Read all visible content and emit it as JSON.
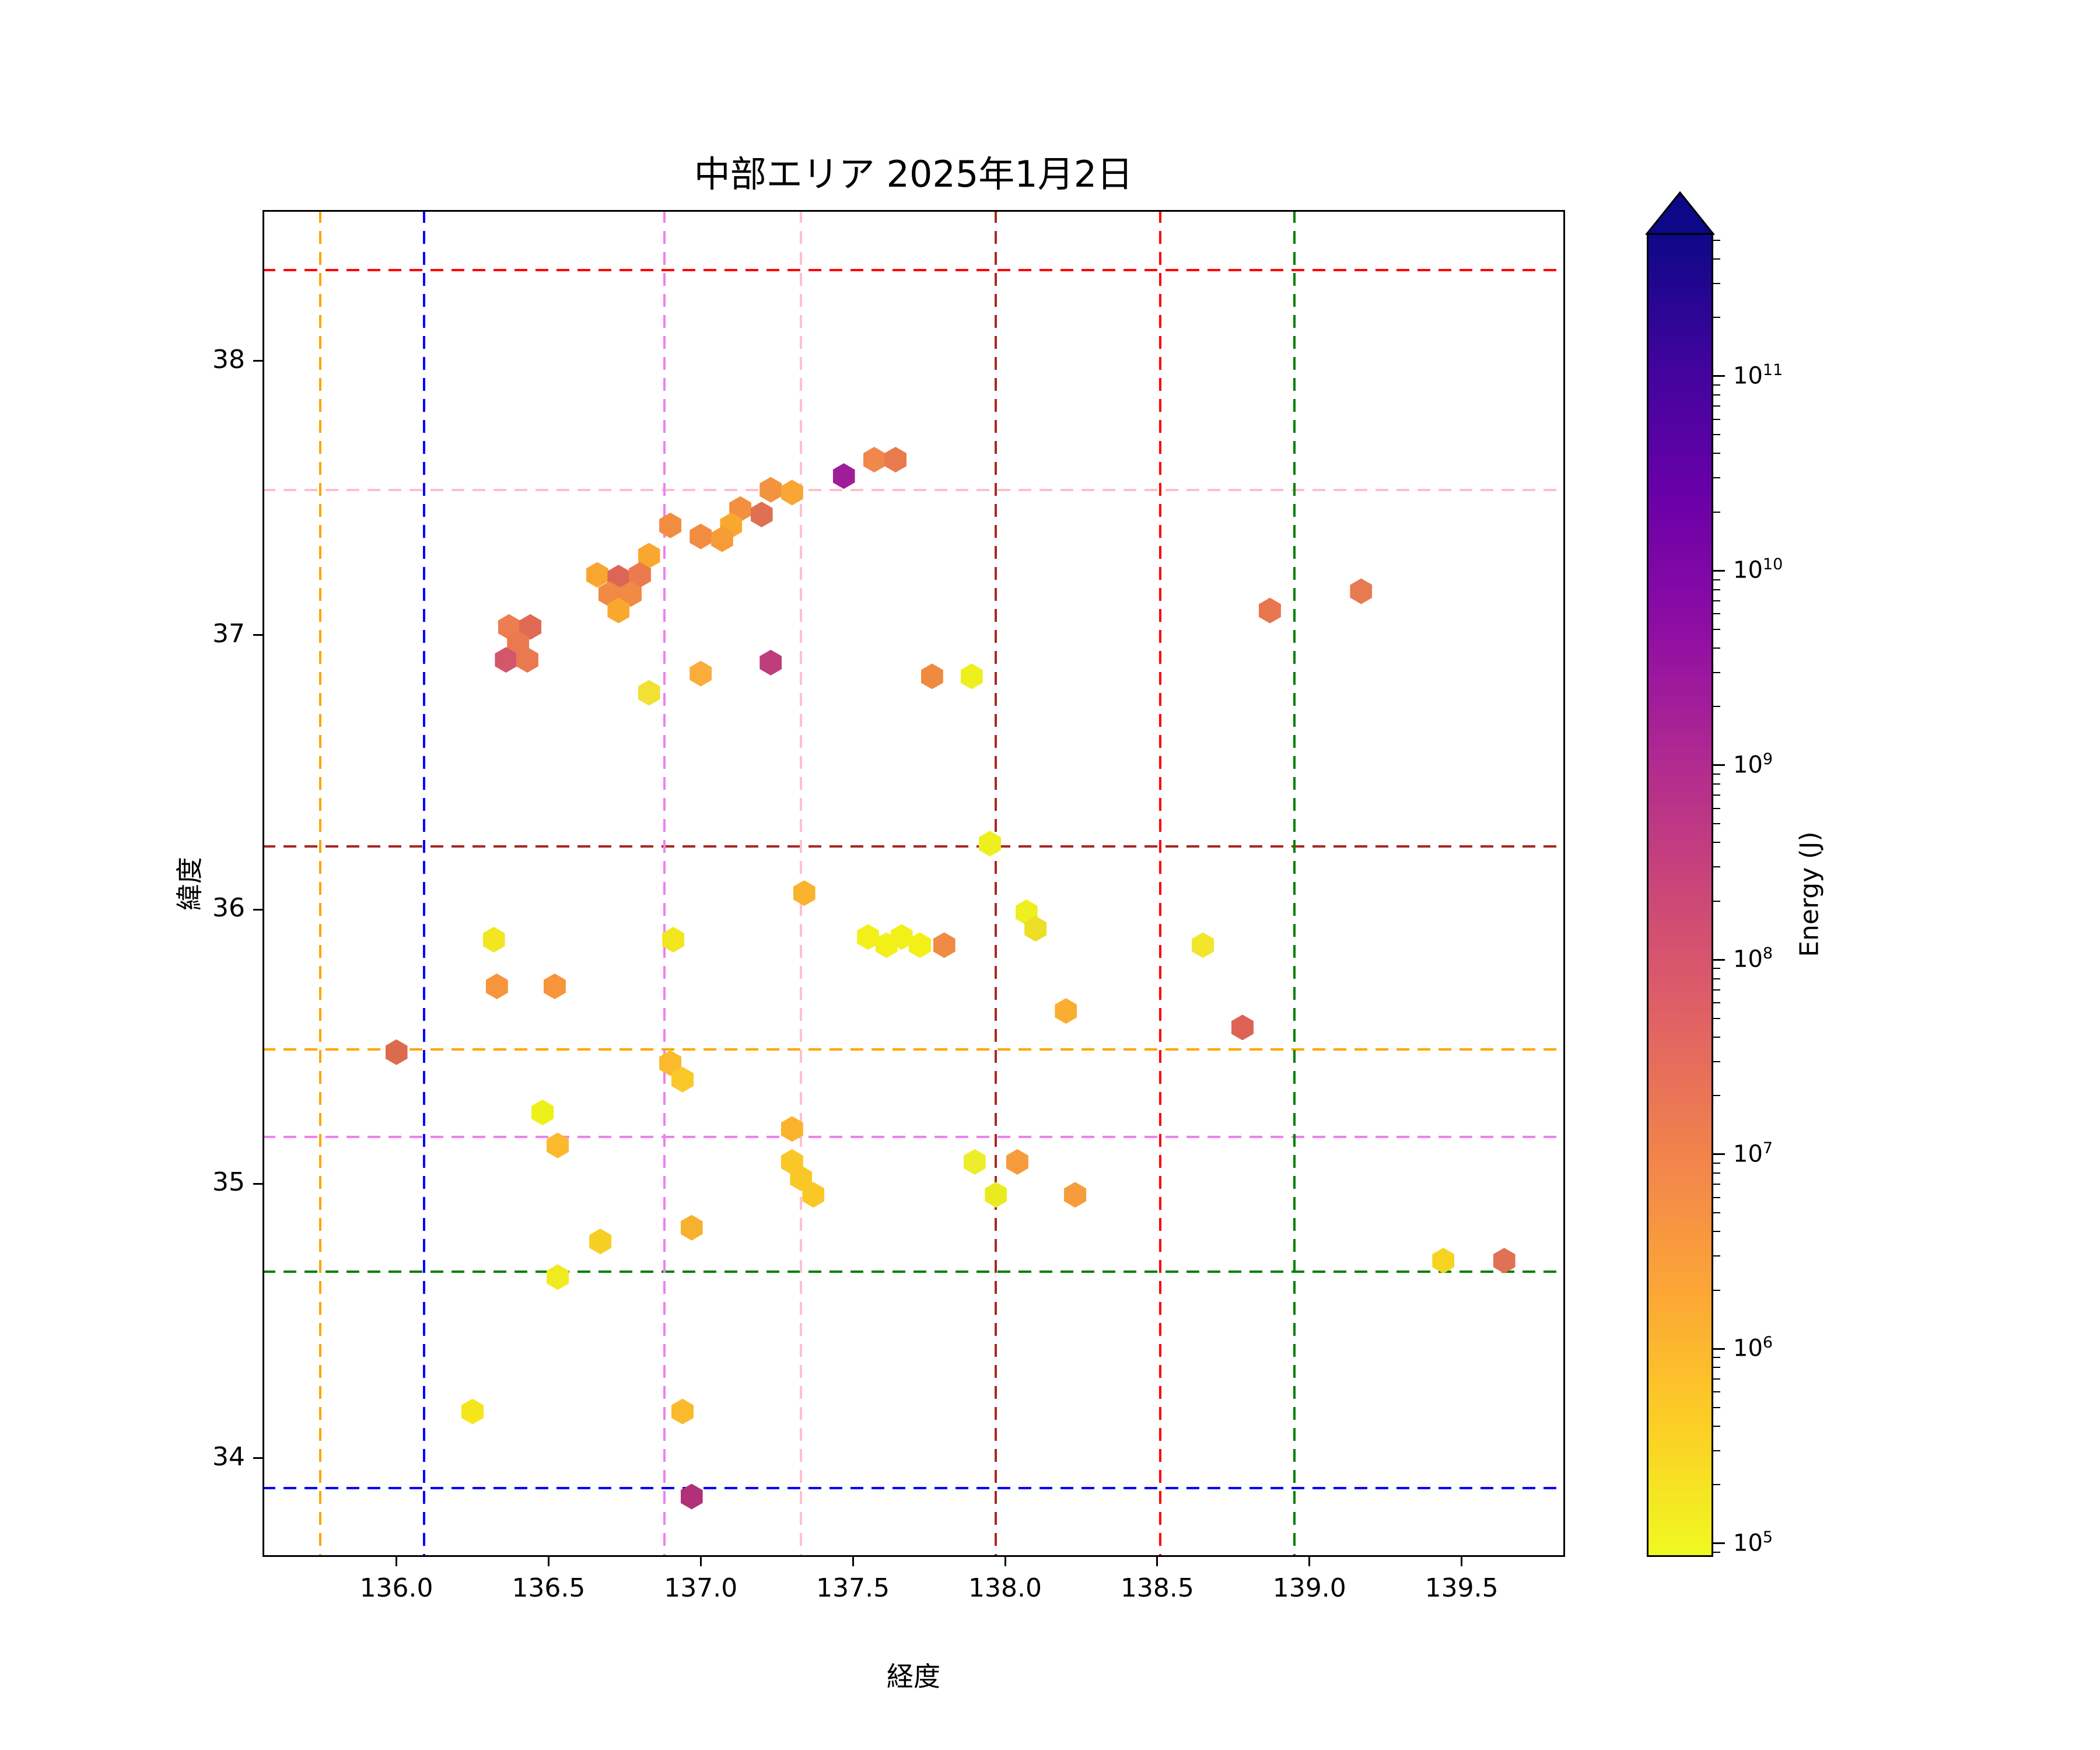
{
  "title": "中部エリア 2025年1月2日",
  "axes": {
    "xlabel": "経度",
    "ylabel": "緯度",
    "xlim": [
      135.56,
      139.84
    ],
    "ylim": [
      33.64,
      38.55
    ],
    "x_ticks": [
      "136.0",
      "136.5",
      "137.0",
      "137.5",
      "138.0",
      "138.5",
      "139.0",
      "139.5"
    ],
    "y_ticks": [
      "34",
      "35",
      "36",
      "37",
      "38"
    ]
  },
  "colorbar": {
    "label": "Energy (J)",
    "scale": "log",
    "colormap": "plasma_r",
    "extend": "max",
    "tick_exponents": [
      5,
      6,
      7,
      8,
      9,
      10,
      11
    ],
    "log_min": 4.93,
    "log_max": 11.74,
    "arrow_color": "#0d0887",
    "gradient_stops": [
      "#0d0887",
      "#41049d",
      "#6a00a8",
      "#8f0da4",
      "#b12a90",
      "#cc4778",
      "#e16462",
      "#f2844b",
      "#fca636",
      "#fcce25",
      "#f0f921"
    ]
  },
  "chart_data": {
    "type": "scatter",
    "marker": "hexagon",
    "title": "中部エリア 2025年1月2日",
    "xlabel": "経度",
    "ylabel": "緯度",
    "xlim": [
      135.56,
      139.84
    ],
    "ylim": [
      33.64,
      38.55
    ],
    "grid": false,
    "colorbar_label": "Energy (J)",
    "reference_lines": {
      "horizontal": [
        {
          "color": "#FF0000",
          "name": "red",
          "lat": 38.33
        },
        {
          "color": "#FFC0CB",
          "name": "pink",
          "lat": 37.53
        },
        {
          "color": "#A82822",
          "name": "darkred",
          "lat": 36.23
        },
        {
          "color": "#FFA500",
          "name": "orange",
          "lat": 35.49
        },
        {
          "color": "#EE82EE",
          "name": "violet",
          "lat": 35.17
        },
        {
          "color": "#008000",
          "name": "green",
          "lat": 34.68
        },
        {
          "color": "#0000FF",
          "name": "blue",
          "lat": 33.89
        }
      ],
      "vertical": [
        {
          "color": "#FFA500",
          "name": "orange",
          "lon": 135.75
        },
        {
          "color": "#0000FF",
          "name": "blue",
          "lon": 136.09
        },
        {
          "color": "#EE82EE",
          "name": "violet",
          "lon": 136.88
        },
        {
          "color": "#FFC0CB",
          "name": "pink",
          "lon": 137.33
        },
        {
          "color": "#A82822",
          "name": "darkred",
          "lon": 137.97
        },
        {
          "color": "#FF0000",
          "name": "red",
          "lon": 138.51
        },
        {
          "color": "#008000",
          "name": "green",
          "lon": 138.95
        }
      ]
    },
    "points": [
      {
        "lon": 137.57,
        "lat": 37.64,
        "color": "#F0874B",
        "energy_j_est": 6000000.0
      },
      {
        "lon": 137.64,
        "lat": 37.64,
        "color": "#E97A4E",
        "energy_j_est": 15000000.0
      },
      {
        "lon": 137.47,
        "lat": 37.58,
        "color": "#A01D9A",
        "energy_j_est": 4000000000.0
      },
      {
        "lon": 137.23,
        "lat": 37.53,
        "color": "#F4933F",
        "energy_j_est": 3500000.0
      },
      {
        "lon": 137.3,
        "lat": 37.52,
        "color": "#F9A634",
        "energy_j_est": 1500000.0
      },
      {
        "lon": 137.13,
        "lat": 37.46,
        "color": "#F2903F",
        "energy_j_est": 5000000.0
      },
      {
        "lon": 137.2,
        "lat": 37.44,
        "color": "#DF7052",
        "energy_j_est": 25000000.0
      },
      {
        "lon": 137.1,
        "lat": 37.4,
        "color": "#F9A82F",
        "energy_j_est": 1300000.0
      },
      {
        "lon": 136.9,
        "lat": 37.4,
        "color": "#F28C41",
        "energy_j_est": 5000000.0
      },
      {
        "lon": 137.0,
        "lat": 37.36,
        "color": "#F28C41",
        "energy_j_est": 5000000.0
      },
      {
        "lon": 137.07,
        "lat": 37.35,
        "color": "#F59B37",
        "energy_j_est": 2200000.0
      },
      {
        "lon": 136.83,
        "lat": 37.29,
        "color": "#F9A82F",
        "energy_j_est": 1300000.0
      },
      {
        "lon": 136.66,
        "lat": 37.22,
        "color": "#F9A631",
        "energy_j_est": 1400000.0
      },
      {
        "lon": 136.73,
        "lat": 37.21,
        "color": "#DC6656",
        "energy_j_est": 40000000.0
      },
      {
        "lon": 136.8,
        "lat": 37.22,
        "color": "#EB7A4D",
        "energy_j_est": 14000000.0
      },
      {
        "lon": 136.7,
        "lat": 37.15,
        "color": "#F18A42",
        "energy_j_est": 5500000.0
      },
      {
        "lon": 136.77,
        "lat": 37.15,
        "color": "#F18A42",
        "energy_j_est": 5500000.0
      },
      {
        "lon": 136.73,
        "lat": 37.09,
        "color": "#F9A82F",
        "energy_j_est": 1300000.0
      },
      {
        "lon": 136.37,
        "lat": 37.03,
        "color": "#EE7D4F",
        "energy_j_est": 12000000.0
      },
      {
        "lon": 136.44,
        "lat": 37.03,
        "color": "#E16A55",
        "energy_j_est": 30000000.0
      },
      {
        "lon": 136.4,
        "lat": 36.97,
        "color": "#EB7950",
        "energy_j_est": 14000000.0
      },
      {
        "lon": 136.36,
        "lat": 36.91,
        "color": "#D4566B",
        "energy_j_est": 120000000.0
      },
      {
        "lon": 136.43,
        "lat": 36.91,
        "color": "#EB7950",
        "energy_j_est": 14000000.0
      },
      {
        "lon": 137.23,
        "lat": 36.9,
        "color": "#BE3D7C",
        "energy_j_est": 500000000.0
      },
      {
        "lon": 137.0,
        "lat": 36.86,
        "color": "#FBAC3B",
        "energy_j_est": 1100000.0
      },
      {
        "lon": 136.83,
        "lat": 36.79,
        "color": "#F2E032",
        "energy_j_est": 200000.0
      },
      {
        "lon": 137.76,
        "lat": 36.85,
        "color": "#F08A3E",
        "energy_j_est": 5000000.0
      },
      {
        "lon": 137.89,
        "lat": 36.85,
        "color": "#EEF01E",
        "energy_j_est": 160000.0
      },
      {
        "lon": 138.87,
        "lat": 37.09,
        "color": "#E8764F",
        "energy_j_est": 16000000.0
      },
      {
        "lon": 139.17,
        "lat": 37.16,
        "color": "#E87A50",
        "energy_j_est": 15000000.0
      },
      {
        "lon": 137.95,
        "lat": 36.24,
        "color": "#EDF01E",
        "energy_j_est": 170000.0
      },
      {
        "lon": 137.34,
        "lat": 36.06,
        "color": "#F9B32C",
        "energy_j_est": 900000.0
      },
      {
        "lon": 136.32,
        "lat": 35.89,
        "color": "#F1E620",
        "energy_j_est": 150000.0
      },
      {
        "lon": 136.91,
        "lat": 35.89,
        "color": "#F1E620",
        "energy_j_est": 150000.0
      },
      {
        "lon": 138.07,
        "lat": 35.99,
        "color": "#EDF01E",
        "energy_j_est": 170000.0
      },
      {
        "lon": 138.1,
        "lat": 35.93,
        "color": "#EDDE26",
        "energy_j_est": 300000.0
      },
      {
        "lon": 137.55,
        "lat": 35.9,
        "color": "#F2F018",
        "energy_j_est": 140000.0
      },
      {
        "lon": 137.61,
        "lat": 35.87,
        "color": "#F2F018",
        "energy_j_est": 140000.0
      },
      {
        "lon": 137.66,
        "lat": 35.9,
        "color": "#F2F018",
        "energy_j_est": 140000.0
      },
      {
        "lon": 137.72,
        "lat": 35.87,
        "color": "#F2F018",
        "energy_j_est": 140000.0
      },
      {
        "lon": 137.8,
        "lat": 35.87,
        "color": "#F08A44",
        "energy_j_est": 5000000.0
      },
      {
        "lon": 138.65,
        "lat": 35.87,
        "color": "#F2E62C",
        "energy_j_est": 200000.0
      },
      {
        "lon": 136.33,
        "lat": 35.72,
        "color": "#F6953C",
        "energy_j_est": 2500000.0
      },
      {
        "lon": 136.52,
        "lat": 35.72,
        "color": "#F6953C",
        "energy_j_est": 2500000.0
      },
      {
        "lon": 138.2,
        "lat": 35.63,
        "color": "#F9AE32",
        "energy_j_est": 1200000.0
      },
      {
        "lon": 138.78,
        "lat": 35.57,
        "color": "#DC6355",
        "energy_j_est": 50000000.0
      },
      {
        "lon": 136.0,
        "lat": 35.48,
        "color": "#DC6B4D",
        "energy_j_est": 20000000.0
      },
      {
        "lon": 136.9,
        "lat": 35.44,
        "color": "#FBB92C",
        "energy_j_est": 800000.0
      },
      {
        "lon": 136.94,
        "lat": 35.38,
        "color": "#FAC829",
        "energy_j_est": 500000.0
      },
      {
        "lon": 136.48,
        "lat": 35.26,
        "color": "#EEF019",
        "energy_j_est": 160000.0
      },
      {
        "lon": 136.53,
        "lat": 35.14,
        "color": "#FBB92C",
        "energy_j_est": 800000.0
      },
      {
        "lon": 137.3,
        "lat": 35.2,
        "color": "#FBB32B",
        "energy_j_est": 900000.0
      },
      {
        "lon": 137.3,
        "lat": 35.08,
        "color": "#F9C827",
        "energy_j_est": 500000.0
      },
      {
        "lon": 137.33,
        "lat": 35.02,
        "color": "#F9C827",
        "energy_j_est": 500000.0
      },
      {
        "lon": 137.37,
        "lat": 34.96,
        "color": "#F9C827",
        "energy_j_est": 500000.0
      },
      {
        "lon": 137.9,
        "lat": 35.08,
        "color": "#EDED2B",
        "energy_j_est": 200000.0
      },
      {
        "lon": 138.04,
        "lat": 35.08,
        "color": "#F69C3C",
        "energy_j_est": 2200000.0
      },
      {
        "lon": 137.97,
        "lat": 34.96,
        "color": "#E8EC1F",
        "energy_j_est": 180000.0
      },
      {
        "lon": 138.23,
        "lat": 34.96,
        "color": "#F69C3C",
        "energy_j_est": 2200000.0
      },
      {
        "lon": 136.97,
        "lat": 34.84,
        "color": "#F8B12E",
        "energy_j_est": 1000000.0
      },
      {
        "lon": 136.67,
        "lat": 34.79,
        "color": "#F7CE23",
        "energy_j_est": 450000.0
      },
      {
        "lon": 136.53,
        "lat": 34.66,
        "color": "#F0EB20",
        "energy_j_est": 180000.0
      },
      {
        "lon": 139.44,
        "lat": 34.72,
        "color": "#F7D321",
        "energy_j_est": 400000.0
      },
      {
        "lon": 139.64,
        "lat": 34.72,
        "color": "#E07155",
        "energy_j_est": 20000000.0
      },
      {
        "lon": 136.25,
        "lat": 34.17,
        "color": "#F5E61C",
        "energy_j_est": 150000.0
      },
      {
        "lon": 136.94,
        "lat": 34.17,
        "color": "#FBB92C",
        "energy_j_est": 800000.0
      },
      {
        "lon": 136.97,
        "lat": 33.86,
        "color": "#B13078",
        "energy_j_est": 900000000.0
      }
    ]
  }
}
